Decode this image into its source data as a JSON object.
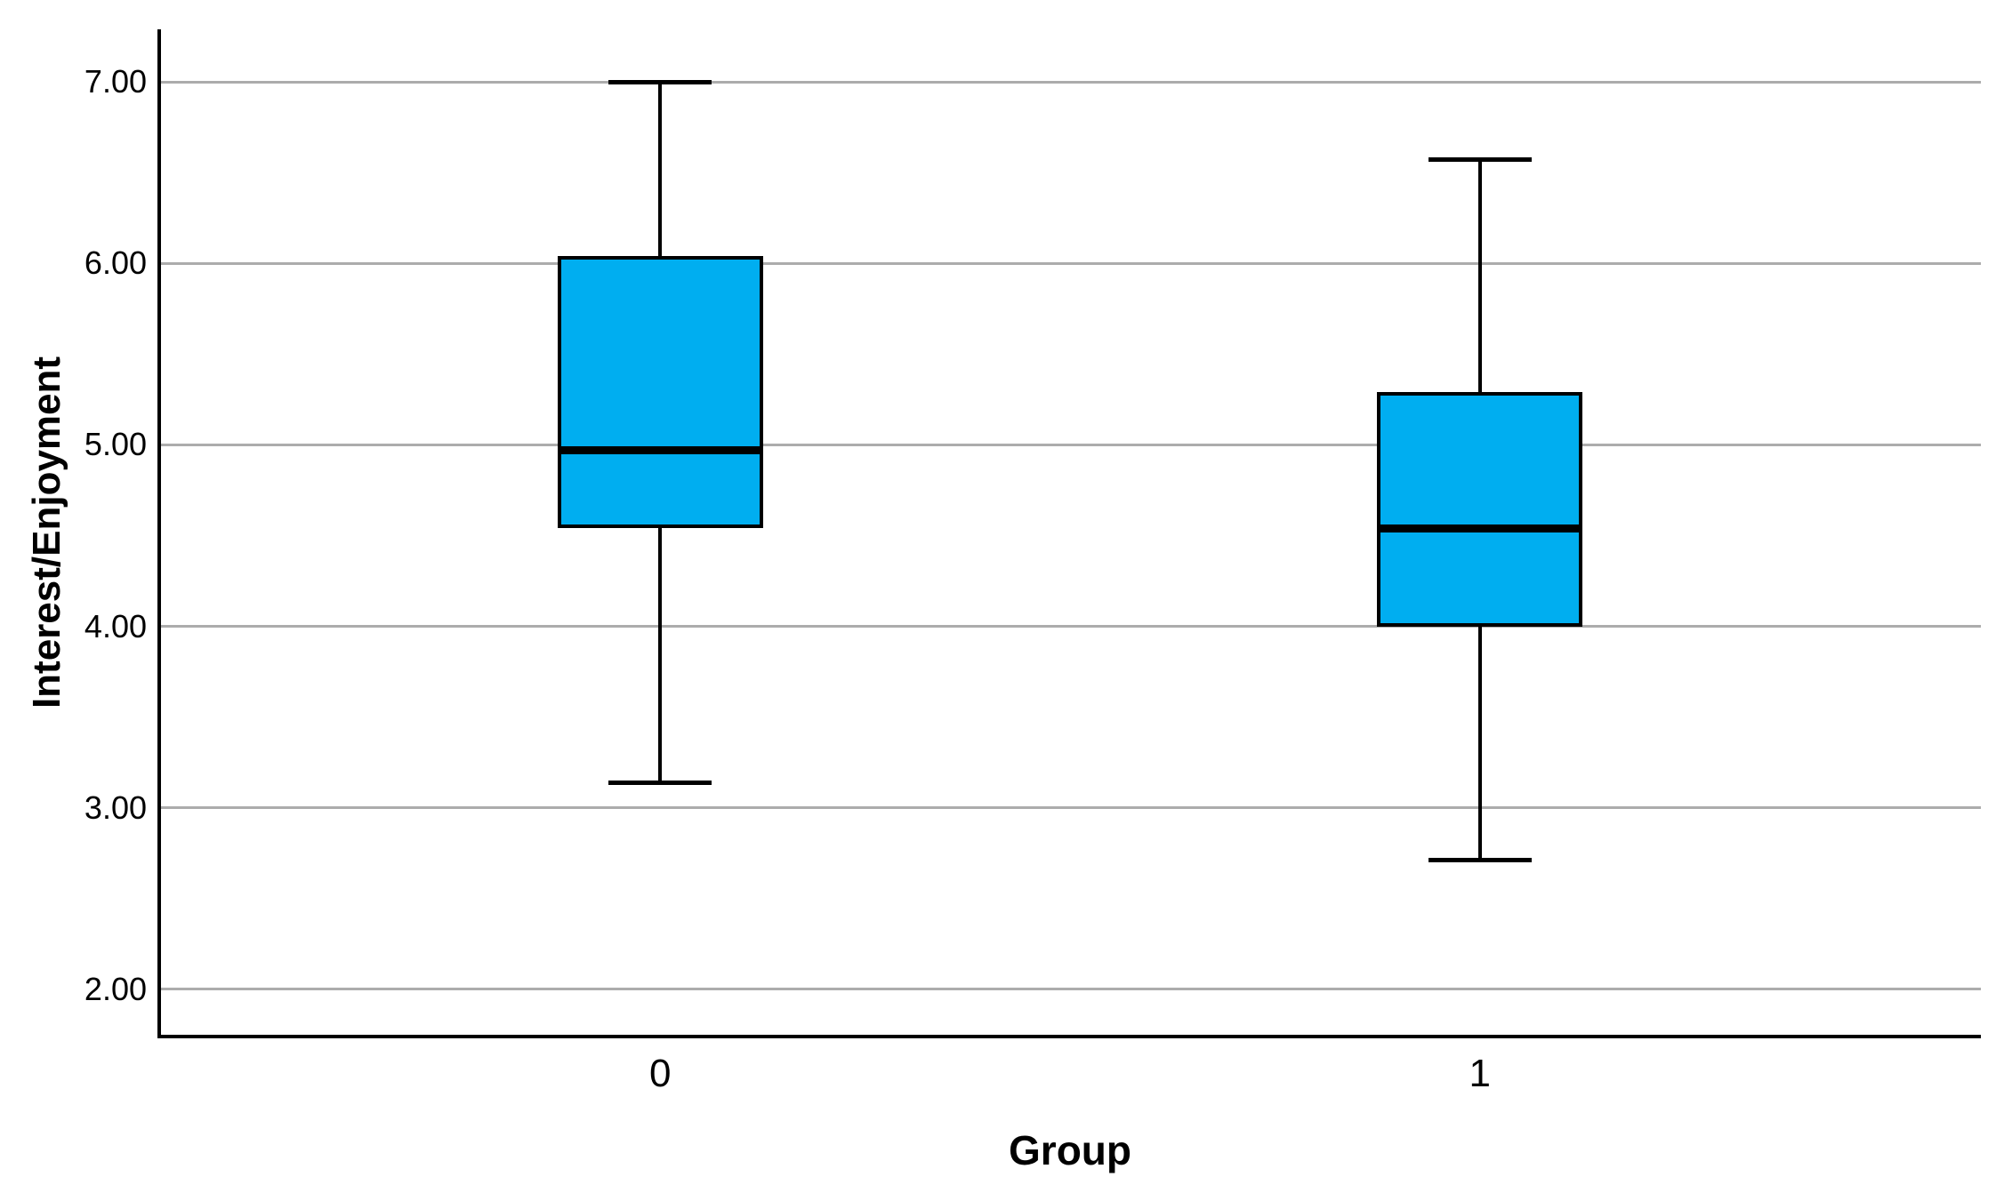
{
  "chart_data": {
    "type": "boxplot",
    "title": "",
    "xlabel": "Group",
    "ylabel": "Interest/Enjoyment",
    "categories": [
      "0",
      "1"
    ],
    "y_tick_values": [
      2.0,
      3.0,
      4.0,
      5.0,
      6.0,
      7.0
    ],
    "y_tick_labels": [
      "2.00",
      "3.00",
      "4.00",
      "5.00",
      "6.00",
      "7.00"
    ],
    "ylim": [
      1.74,
      7.29
    ],
    "grid": "horizontal-gray-lines",
    "legend": "none",
    "series": [
      {
        "category": "0",
        "whisker_low": 3.14,
        "q1": 4.54,
        "median": 4.97,
        "q3": 6.04,
        "whisker_high": 7.0
      },
      {
        "category": "1",
        "whisker_low": 2.71,
        "q1": 4.0,
        "median": 4.54,
        "q3": 5.29,
        "whisker_high": 6.57
      }
    ],
    "colors": {
      "box_fill": "#00AEF0",
      "box_border": "#000000",
      "median": "#000000",
      "whisker": "#000000",
      "gridline": "#ACACAC",
      "axis": "#000000",
      "background": "#FFFFFF"
    }
  }
}
